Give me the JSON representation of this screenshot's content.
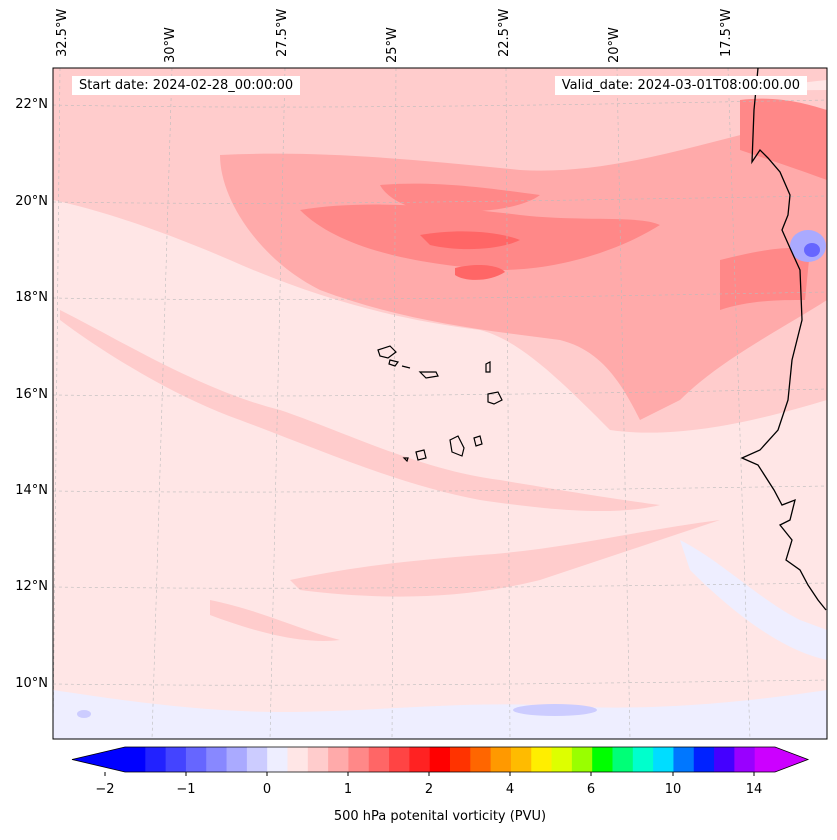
{
  "map": {
    "region": "Cape Verde and West African coast",
    "start_date": "Start date: 2024-02-28_00:00:00",
    "valid_date": "Valid_date: 2024-03-01T08:00:00.00",
    "lon_labels": [
      "32.5°W",
      "30°W",
      "27.5°W",
      "25°W",
      "22.5°W",
      "20°W",
      "17.5°W"
    ],
    "lat_labels": [
      "22°N",
      "20°N",
      "18°N",
      "16°N",
      "14°N",
      "12°N",
      "10°N"
    ],
    "background_color": "#ffe6e6",
    "coastline_color": "#000000"
  },
  "colorbar": {
    "label": "500 hPa potenital vorticity (PVU)",
    "ticks": [
      "−2",
      "−1",
      "0",
      "1",
      "2",
      "4",
      "6",
      "10",
      "14"
    ],
    "colors": [
      "#0000ff",
      "#2222ff",
      "#4444ff",
      "#6666ff",
      "#8888ff",
      "#aaaaff",
      "#ccccff",
      "#eeeeff",
      "#ffe6e6",
      "#ffcccc",
      "#ffaaaa",
      "#ff8888",
      "#ff6666",
      "#ff4444",
      "#ff2222",
      "#ff0000",
      "#ff3300",
      "#ff6600",
      "#ff9900",
      "#ffbb00",
      "#ffee00",
      "#ddff00",
      "#99ff00",
      "#00ff00",
      "#00ff77",
      "#00ffcc",
      "#00ddff",
      "#0077ff",
      "#0022ff",
      "#4400ff",
      "#9900ff",
      "#cc00ff"
    ],
    "min_arrow_color": "#0000ff",
    "max_arrow_color": "#cc00ff"
  }
}
